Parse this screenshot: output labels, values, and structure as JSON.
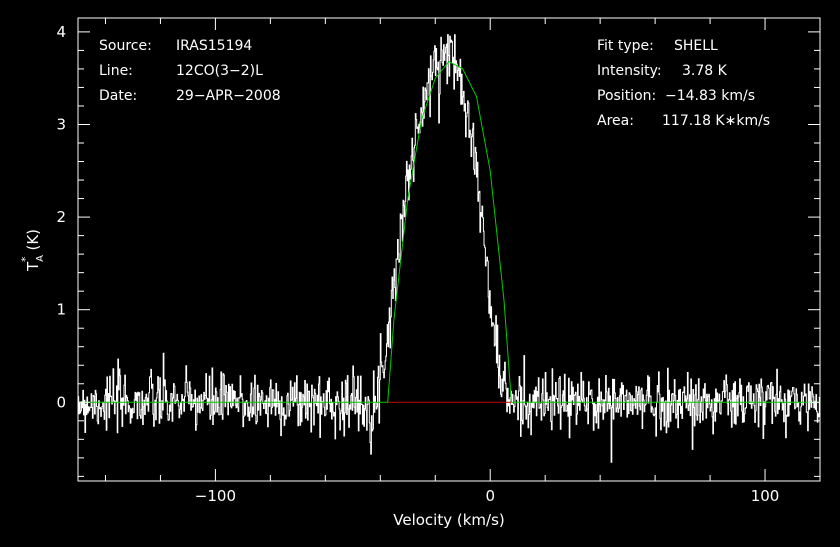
{
  "chart_data": {
    "type": "line",
    "xlabel": "Velocity (km/s)",
    "ylabel": "T",
    "ylabel_sub": "A",
    "ylabel_sup": "*",
    "ylabel_unit": "(K)",
    "xlim": [
      -150,
      120
    ],
    "ylim": [
      -0.85,
      4.15
    ],
    "x_ticks": [
      -100,
      0,
      100
    ],
    "x_tick_labels": [
      "−100",
      "0",
      "100"
    ],
    "y_ticks": [
      0,
      1,
      2,
      3,
      4
    ],
    "y_tick_labels": [
      "0",
      "1",
      "2",
      "3",
      "4"
    ],
    "grid": false,
    "series": [
      {
        "role": "spectrum",
        "color": "#ffffff",
        "noise_rms": 0.16,
        "seed": 7,
        "line_x": [
          -150,
          -41,
          -37,
          -30,
          -24,
          -20,
          -17,
          -14,
          -11,
          -8,
          -4,
          0,
          4,
          7,
          120
        ],
        "line_y": [
          0,
          0,
          0.8,
          2.4,
          3.25,
          3.6,
          3.8,
          3.75,
          3.55,
          3.2,
          2.3,
          1.1,
          0.25,
          0,
          0
        ]
      },
      {
        "role": "fit",
        "color": "#00cc00",
        "x": [
          -150,
          -37.3,
          -35,
          -30,
          -25,
          -20,
          -15,
          -10,
          -5,
          0,
          5,
          7.7,
          120
        ],
        "y": [
          0,
          0,
          0.9,
          2.2,
          3.05,
          3.5,
          3.68,
          3.6,
          3.3,
          2.5,
          1.1,
          0,
          0
        ]
      },
      {
        "role": "fit-window",
        "color": "#cc0000",
        "x": [
          -37.3,
          7.7
        ],
        "y": [
          0,
          0
        ]
      }
    ]
  },
  "header_left": {
    "source_label": "Source:",
    "source_value": "IRAS15194",
    "line_label": "Line:",
    "line_value": "12CO(3−2)L",
    "date_label": "Date:",
    "date_value": "29−APR−2008"
  },
  "header_right": {
    "fit_label": "Fit type:",
    "fit_value": "SHELL",
    "intensity_label": "Intensity:",
    "intensity_value": "3.78 K",
    "position_label": "Position:",
    "position_value": "−14.83 km/s",
    "area_label": "Area:",
    "area_value": "117.18 K∗km/s"
  }
}
